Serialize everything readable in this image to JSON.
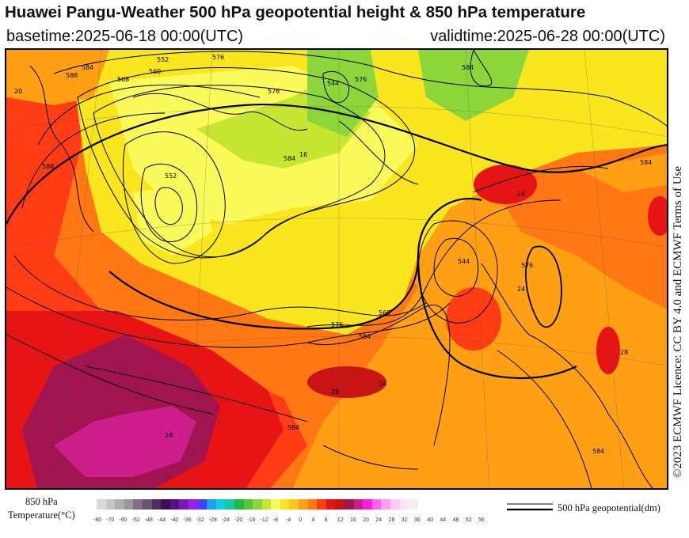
{
  "header": {
    "title": "Huawei Pangu-Weather 500 hPa geopotential height & 850 hPa temperature",
    "basetime": "basetime:2025-06-18 00:00(UTC)",
    "validtime": "validtime:2025-06-28 00:00(UTC)"
  },
  "credit": "©2023 ECMWF Licence: CC BY 4.0 and ECMWF Terms of Use",
  "legend": {
    "temperature_label_line1": "850 hPa",
    "temperature_label_line2": "Temperature(°C)",
    "geopotential_label": "500 hPa geopotential(dm)",
    "ticks": [
      "-80",
      "-70",
      "-60",
      "-52",
      "-48",
      "-44",
      "-40",
      "-36",
      "-32",
      "-28",
      "-24",
      "-20",
      "-16",
      "-12",
      "-8",
      "-4",
      "0",
      "4",
      "8",
      "12",
      "16",
      "20",
      "24",
      "28",
      "32",
      "36",
      "40",
      "44",
      "48",
      "52",
      "56"
    ],
    "colors": [
      "#d9d9d9",
      "#c4c4c4",
      "#aeaeae",
      "#989898",
      "#7f6e86",
      "#66556e",
      "#4b2e5a",
      "#3b0f54",
      "#5a0f80",
      "#7a18b8",
      "#9c1ee8",
      "#3c44f2",
      "#1ea0f0",
      "#12cde6",
      "#17c9a0",
      "#22b848",
      "#55c536",
      "#8cd63a",
      "#c6e632",
      "#fafa5a",
      "#fae61e",
      "#ffc814",
      "#ffa014",
      "#ff7814",
      "#ff3c14",
      "#e61414",
      "#c81414",
      "#a01450",
      "#cd1e8c",
      "#ff1edc",
      "#ff64f0",
      "#ffa0f0",
      "#ffc8f5",
      "#ffe1fa",
      "#f0f0f0"
    ]
  },
  "map": {
    "contour_labels": [
      "552",
      "560",
      "568",
      "576",
      "584",
      "588",
      "552",
      "544",
      "576",
      "584",
      "576",
      "544",
      "568",
      "584",
      "576",
      "584",
      "584",
      "576",
      "584",
      "584",
      "588"
    ],
    "temperature_labels": [
      "20",
      "28",
      "24",
      "24",
      "28",
      "28",
      "16",
      "20"
    ]
  }
}
